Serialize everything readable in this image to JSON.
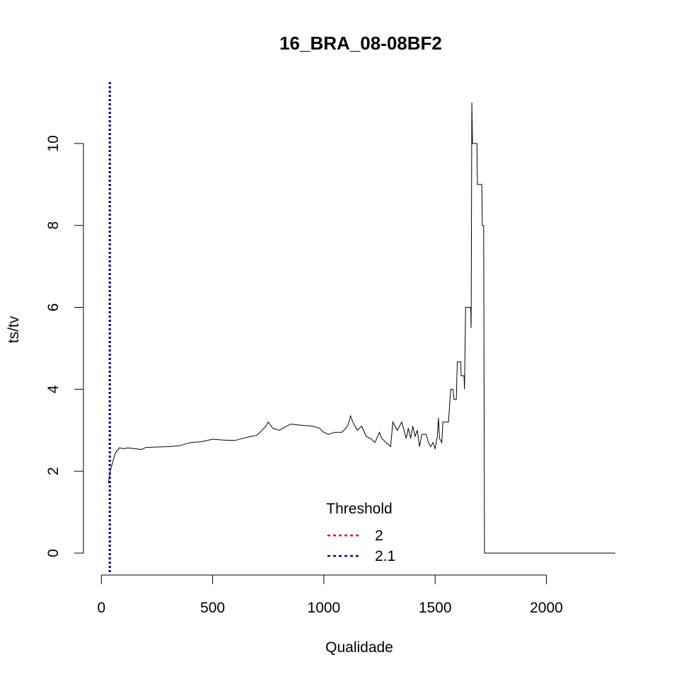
{
  "chart_data": {
    "type": "line",
    "title": "16_BRA_08-08BF2",
    "xlabel": "Qualidade",
    "ylabel": "ts/tv",
    "xlim": [
      -20,
      2310
    ],
    "ylim": [
      -0.5,
      11.5
    ],
    "x_ticks": [
      0,
      500,
      1000,
      1500,
      2000
    ],
    "y_ticks": [
      0,
      2,
      4,
      6,
      8,
      10
    ],
    "grid": false,
    "series": [
      {
        "color": "#000000",
        "points": [
          [
            32,
            1.7
          ],
          [
            35,
            1.85
          ],
          [
            40,
            2.0
          ],
          [
            45,
            2.1
          ],
          [
            50,
            2.2
          ],
          [
            55,
            2.3
          ],
          [
            60,
            2.4
          ],
          [
            65,
            2.45
          ],
          [
            70,
            2.5
          ],
          [
            75,
            2.52
          ],
          [
            80,
            2.57
          ],
          [
            100,
            2.55
          ],
          [
            120,
            2.57
          ],
          [
            150,
            2.55
          ],
          [
            180,
            2.53
          ],
          [
            200,
            2.58
          ],
          [
            250,
            2.59
          ],
          [
            300,
            2.6
          ],
          [
            350,
            2.62
          ],
          [
            400,
            2.7
          ],
          [
            450,
            2.72
          ],
          [
            500,
            2.78
          ],
          [
            550,
            2.76
          ],
          [
            600,
            2.75
          ],
          [
            650,
            2.82
          ],
          [
            700,
            2.88
          ],
          [
            740,
            3.1
          ],
          [
            750,
            3.2
          ],
          [
            770,
            3.05
          ],
          [
            800,
            3.0
          ],
          [
            850,
            3.15
          ],
          [
            900,
            3.12
          ],
          [
            950,
            3.1
          ],
          [
            980,
            3.05
          ],
          [
            1000,
            2.95
          ],
          [
            1020,
            2.9
          ],
          [
            1050,
            2.95
          ],
          [
            1080,
            2.95
          ],
          [
            1100,
            3.05
          ],
          [
            1110,
            3.15
          ],
          [
            1120,
            3.35
          ],
          [
            1130,
            3.2
          ],
          [
            1150,
            3.0
          ],
          [
            1170,
            3.1
          ],
          [
            1190,
            2.85
          ],
          [
            1210,
            2.8
          ],
          [
            1230,
            2.7
          ],
          [
            1250,
            2.95
          ],
          [
            1260,
            2.8
          ],
          [
            1280,
            2.7
          ],
          [
            1300,
            2.6
          ],
          [
            1310,
            3.2
          ],
          [
            1330,
            3.0
          ],
          [
            1350,
            3.2
          ],
          [
            1370,
            2.8
          ],
          [
            1380,
            3.05
          ],
          [
            1390,
            2.8
          ],
          [
            1400,
            3.1
          ],
          [
            1410,
            2.85
          ],
          [
            1420,
            3.0
          ],
          [
            1430,
            2.6
          ],
          [
            1440,
            2.9
          ],
          [
            1460,
            2.9
          ],
          [
            1470,
            2.7
          ],
          [
            1480,
            2.6
          ],
          [
            1490,
            2.7
          ],
          [
            1500,
            2.55
          ],
          [
            1510,
            2.85
          ],
          [
            1515,
            3.3
          ],
          [
            1520,
            2.8
          ],
          [
            1530,
            2.7
          ],
          [
            1535,
            3.2
          ],
          [
            1560,
            3.2
          ],
          [
            1570,
            4.0
          ],
          [
            1580,
            4.0
          ],
          [
            1585,
            3.75
          ],
          [
            1595,
            3.75
          ],
          [
            1600,
            4.67
          ],
          [
            1615,
            4.67
          ],
          [
            1617,
            4.33
          ],
          [
            1630,
            4.33
          ],
          [
            1632,
            4.0
          ],
          [
            1637,
            6.0
          ],
          [
            1660,
            6.0
          ],
          [
            1662,
            5.5
          ],
          [
            1665,
            11.0
          ],
          [
            1668,
            10.0
          ],
          [
            1688,
            10.0
          ],
          [
            1690,
            9.0
          ],
          [
            1710,
            9.0
          ],
          [
            1712,
            8.0
          ],
          [
            1718,
            8.0
          ],
          [
            1722,
            0.0
          ],
          [
            2310,
            0.0
          ]
        ]
      }
    ],
    "vlines": [
      {
        "x": 38,
        "color": "#ff0000"
      },
      {
        "x": 38,
        "color": "#0000cc"
      }
    ],
    "legend": {
      "title": "Threshold",
      "placement": "bottom-center",
      "entries": [
        {
          "label": "2",
          "color": "#ff0000"
        },
        {
          "label": "2.1",
          "color": "#0000cc"
        }
      ]
    }
  }
}
